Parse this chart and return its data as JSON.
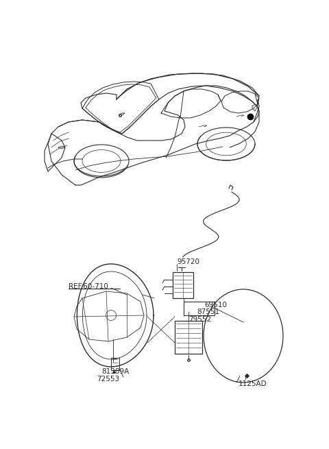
{
  "bg_color": "#ffffff",
  "line_color": "#2a2a2a",
  "lw_main": 0.9,
  "lw_thin": 0.6,
  "labels": {
    "REF60710": "REF.60-710",
    "p95720": "95720",
    "p69510": "69510",
    "p87551": "87551",
    "p79552": "79552",
    "p81389A": "81389A",
    "p72553": "72553",
    "p1125AD": "1125AD"
  },
  "font_size": 7.0,
  "car_color": "#2a2a2a",
  "border_color": "#555555"
}
